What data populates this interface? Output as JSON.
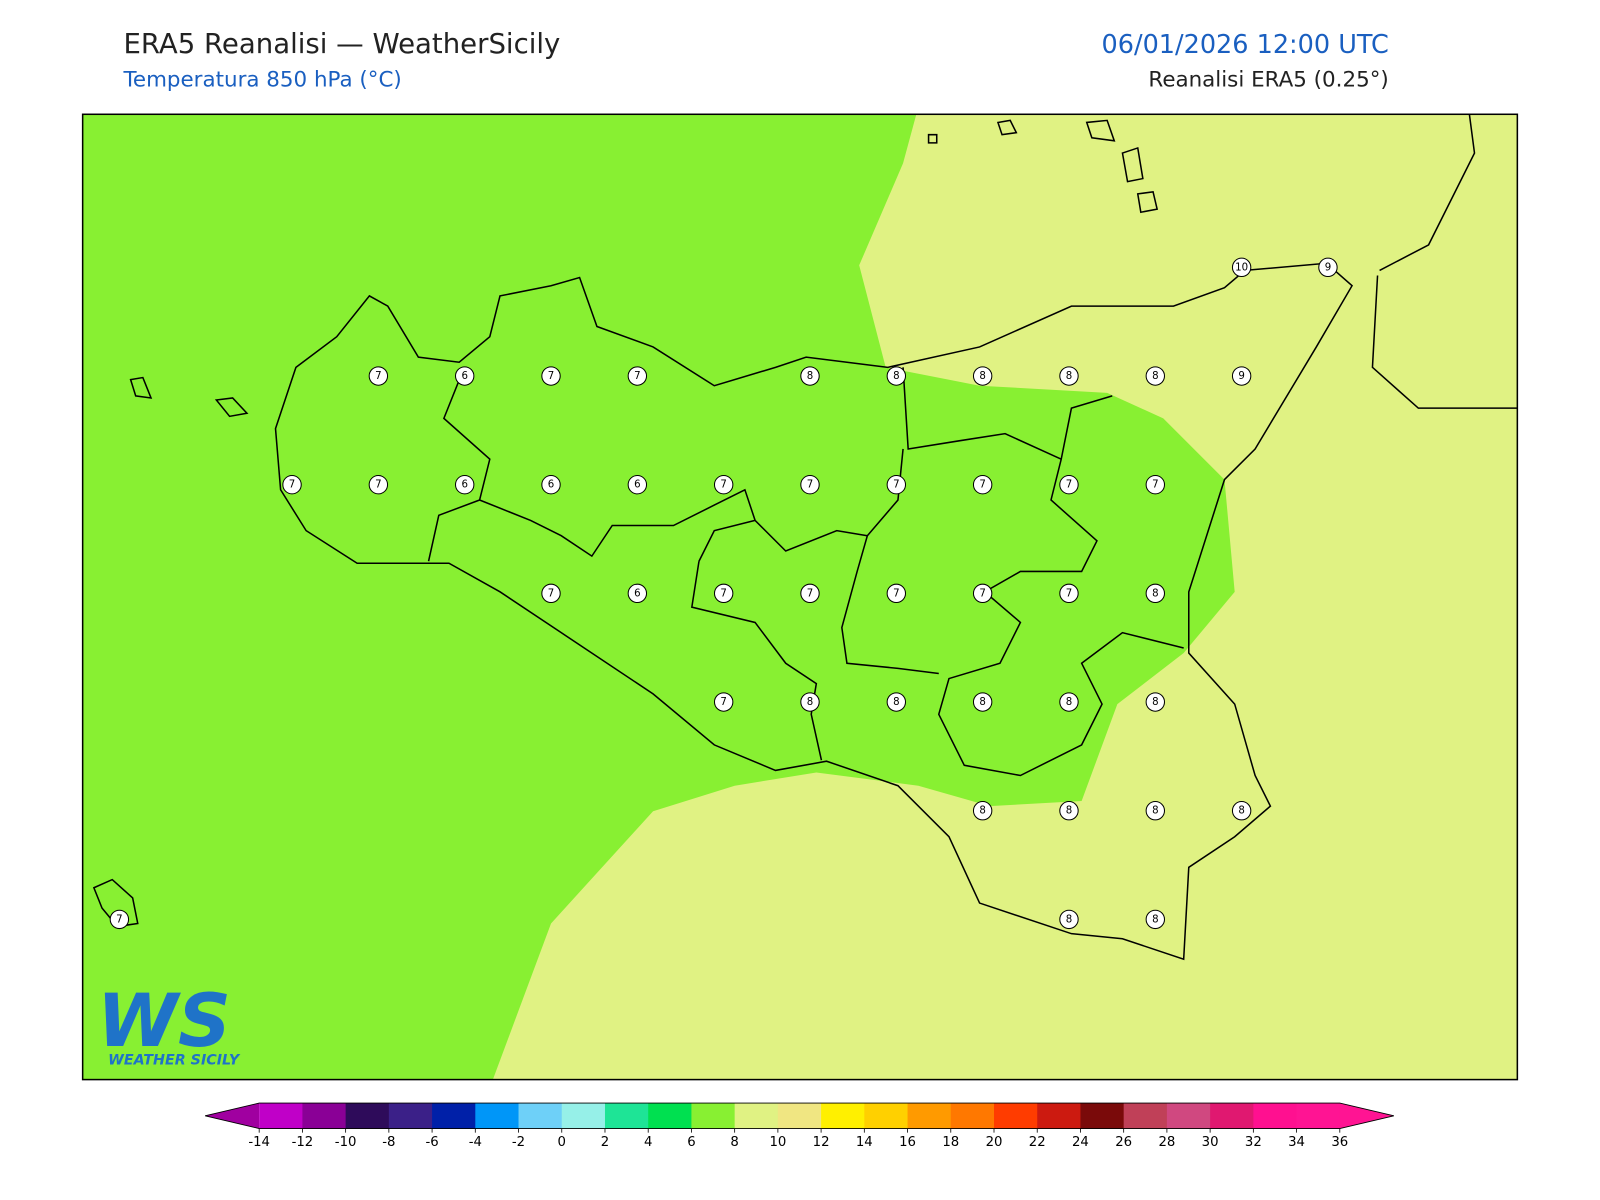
{
  "header": {
    "title": "ERA5 Reanalisi — WeatherSicily",
    "subtitle": "Temperatura 850 hPa (°C)",
    "datetime": "06/01/2026 12:00 UTC",
    "source": "Reanalisi ERA5 (0.25°)"
  },
  "map": {
    "stations": [
      [
        null,
        null,
        null,
        null,
        null,
        null,
        null,
        null,
        null,
        null,
        null,
        null,
        null,
        10,
        9
      ],
      [
        null,
        null,
        null,
        7,
        6,
        7,
        7,
        null,
        8,
        8,
        8,
        8,
        8,
        9,
        null
      ],
      [
        null,
        null,
        7,
        7,
        6,
        6,
        6,
        7,
        7,
        7,
        7,
        7,
        7,
        null,
        null
      ],
      [
        null,
        null,
        null,
        null,
        null,
        7,
        6,
        7,
        7,
        7,
        7,
        7,
        8,
        null,
        null
      ],
      [
        null,
        null,
        null,
        null,
        null,
        null,
        null,
        7,
        8,
        8,
        8,
        8,
        8,
        null,
        null
      ],
      [
        null,
        null,
        null,
        null,
        null,
        null,
        null,
        null,
        null,
        null,
        8,
        8,
        8,
        8,
        null
      ],
      [
        7,
        null,
        null,
        null,
        null,
        null,
        null,
        null,
        null,
        null,
        null,
        8,
        8,
        null,
        null
      ]
    ]
  },
  "logo": {
    "letters": "WS",
    "name": "WEATHER SICILY"
  },
  "colorbar": {
    "ticks": [
      -14,
      -12,
      -10,
      -8,
      -6,
      -4,
      -2,
      0,
      2,
      4,
      6,
      8,
      10,
      12,
      14,
      16,
      18,
      20,
      22,
      24,
      26,
      28,
      30,
      32,
      34,
      36
    ],
    "colors": [
      "#c000c8",
      "#8a0096",
      "#2e0b5a",
      "#3b2088",
      "#0020a8",
      "#0096f8",
      "#6ed0f8",
      "#96f0e8",
      "#1ee496",
      "#00e050",
      "#88f032",
      "#e0f283",
      "#f0e682",
      "#fff000",
      "#ffd000",
      "#ff9a00",
      "#ff7800",
      "#ff3c00",
      "#cc1a10",
      "#7a0a0a",
      "#c04058",
      "#d04880",
      "#e01870",
      "#ff1090",
      "#ff1493"
    ],
    "under_color": "#a000a0",
    "over_color": "#ff1493"
  }
}
